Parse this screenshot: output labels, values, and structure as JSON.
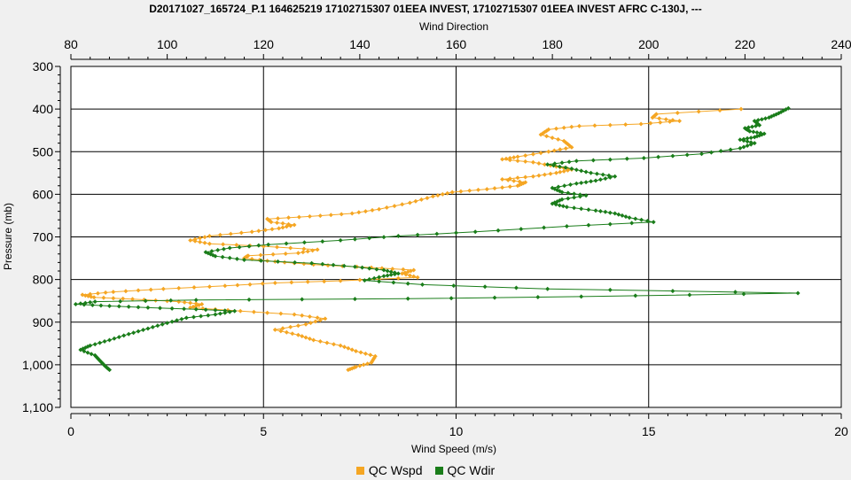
{
  "chart_data": {
    "type": "line",
    "title": "D20171027_165724_P.1 164625219 17102715307 01EEA INVEST, 17102715307 01EEA INVEST AFRC C-130J, ---",
    "xlabel": "Wind Speed (m/s)",
    "x2label": "Wind Direction",
    "ylabel": "Pressure (mb)",
    "xlim": [
      0,
      20
    ],
    "x2lim": [
      80,
      240
    ],
    "ylim": [
      300,
      1100
    ],
    "y_inverted": true,
    "grid": true,
    "legend_position": "bottom",
    "x_ticks": [
      "0",
      "5",
      "10",
      "15",
      "20"
    ],
    "x2_ticks": [
      "80",
      "100",
      "120",
      "140",
      "160",
      "180",
      "200",
      "220",
      "240"
    ],
    "y_ticks": [
      "300",
      "400",
      "500",
      "600",
      "700",
      "800",
      "900",
      "1,000",
      "1,100"
    ],
    "series": [
      {
        "name": "QC Wspd",
        "color": "#f5a623",
        "axis": "bottom",
        "points": [
          [
            17.4,
            400
          ],
          [
            15.2,
            412
          ],
          [
            15.1,
            420
          ],
          [
            15.8,
            428
          ],
          [
            14.8,
            435
          ],
          [
            13.2,
            440
          ],
          [
            12.4,
            448
          ],
          [
            12.2,
            460
          ],
          [
            12.8,
            475
          ],
          [
            13.0,
            490
          ],
          [
            12.4,
            500
          ],
          [
            11.6,
            512
          ],
          [
            11.2,
            518
          ],
          [
            12.0,
            525
          ],
          [
            12.6,
            535
          ],
          [
            13.0,
            542
          ],
          [
            12.6,
            550
          ],
          [
            12.0,
            558
          ],
          [
            11.2,
            565
          ],
          [
            11.8,
            572
          ],
          [
            11.6,
            580
          ],
          [
            10.8,
            588
          ],
          [
            9.9,
            595
          ],
          [
            9.4,
            605
          ],
          [
            8.8,
            620
          ],
          [
            8.0,
            635
          ],
          [
            7.3,
            645
          ],
          [
            6.2,
            652
          ],
          [
            5.1,
            658
          ],
          [
            5.2,
            665
          ],
          [
            5.8,
            672
          ],
          [
            5.4,
            680
          ],
          [
            4.7,
            688
          ],
          [
            3.6,
            698
          ],
          [
            3.1,
            708
          ],
          [
            3.6,
            716
          ],
          [
            5.0,
            722
          ],
          [
            6.4,
            730
          ],
          [
            5.9,
            738
          ],
          [
            4.6,
            744
          ],
          [
            4.5,
            750
          ],
          [
            5.3,
            758
          ],
          [
            6.3,
            765
          ],
          [
            7.8,
            772
          ],
          [
            8.9,
            778
          ],
          [
            8.6,
            786
          ],
          [
            9.0,
            795
          ],
          [
            7.0,
            803
          ],
          [
            5.3,
            808
          ],
          [
            4.0,
            815
          ],
          [
            2.4,
            822
          ],
          [
            1.1,
            829
          ],
          [
            0.3,
            836
          ],
          [
            0.6,
            842
          ],
          [
            1.6,
            846
          ],
          [
            2.8,
            852
          ],
          [
            3.4,
            858
          ],
          [
            3.1,
            866
          ],
          [
            4.4,
            874
          ],
          [
            5.8,
            882
          ],
          [
            6.6,
            892
          ],
          [
            6.1,
            905
          ],
          [
            5.3,
            918
          ],
          [
            5.9,
            930
          ],
          [
            6.3,
            942
          ],
          [
            7.0,
            955
          ],
          [
            7.4,
            968
          ],
          [
            7.9,
            980
          ],
          [
            7.8,
            995
          ],
          [
            7.4,
            1005
          ],
          [
            7.2,
            1012
          ]
        ]
      },
      {
        "name": "QC Wdir",
        "color": "#1a7d1a",
        "axis": "top",
        "points": [
          [
            229,
            398
          ],
          [
            227,
            410
          ],
          [
            225,
            420
          ],
          [
            222,
            428
          ],
          [
            223,
            438
          ],
          [
            220,
            445
          ],
          [
            221,
            452
          ],
          [
            224,
            458
          ],
          [
            222,
            466
          ],
          [
            219,
            472
          ],
          [
            222,
            480
          ],
          [
            219,
            492
          ],
          [
            211,
            505
          ],
          [
            199,
            515
          ],
          [
            185,
            522
          ],
          [
            179,
            530
          ],
          [
            184,
            540
          ],
          [
            188,
            550
          ],
          [
            193,
            558
          ],
          [
            189,
            568
          ],
          [
            185,
            575
          ],
          [
            180,
            585
          ],
          [
            182,
            595
          ],
          [
            187,
            603
          ],
          [
            182,
            612
          ],
          [
            180,
            622
          ],
          [
            183,
            630
          ],
          [
            189,
            638
          ],
          [
            193,
            645
          ],
          [
            196,
            655
          ],
          [
            201,
            665
          ],
          [
            183,
            675
          ],
          [
            164,
            688
          ],
          [
            148,
            698
          ],
          [
            136,
            708
          ],
          [
            121,
            718
          ],
          [
            113,
            726
          ],
          [
            108,
            736
          ],
          [
            110,
            745
          ],
          [
            116,
            754
          ],
          [
            130,
            762
          ],
          [
            139,
            770
          ],
          [
            145,
            778
          ],
          [
            148,
            786
          ],
          [
            145,
            792
          ],
          [
            141,
            802
          ],
          [
            153,
            812
          ],
          [
            179,
            822
          ],
          [
            231,
            832
          ],
          [
            186,
            840
          ],
          [
            150,
            845
          ],
          [
            106,
            848
          ],
          [
            85,
            852
          ],
          [
            81,
            858
          ],
          [
            88,
            862
          ],
          [
            96,
            866
          ],
          [
            106,
            870
          ],
          [
            114,
            874
          ],
          [
            110,
            882
          ],
          [
            104,
            890
          ],
          [
            100,
            902
          ],
          [
            96,
            915
          ],
          [
            92,
            928
          ],
          [
            88,
            942
          ],
          [
            84,
            955
          ],
          [
            82,
            965
          ],
          [
            85,
            978
          ],
          [
            86,
            990
          ],
          [
            87,
            1002
          ],
          [
            88,
            1012
          ]
        ]
      }
    ]
  },
  "legend": {
    "items": [
      {
        "label": "QC Wspd",
        "color": "#f5a623"
      },
      {
        "label": "QC Wdir",
        "color": "#1a7d1a"
      }
    ]
  }
}
